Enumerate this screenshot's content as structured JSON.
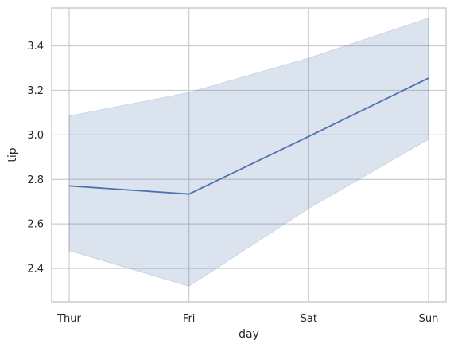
{
  "chart_data": {
    "type": "line",
    "title": "",
    "xlabel": "day",
    "ylabel": "tip",
    "categories": [
      "Thur",
      "Fri",
      "Sat",
      "Sun"
    ],
    "series": [
      {
        "values": [
          2.771,
          2.734,
          2.993,
          3.255
        ],
        "ci_lower": [
          2.48,
          2.32,
          2.67,
          2.98
        ],
        "ci_upper": [
          3.085,
          3.19,
          3.345,
          3.525
        ]
      }
    ],
    "ylim": [
      2.25,
      3.57
    ],
    "yticks": [
      2.4,
      2.6,
      2.8,
      3.0,
      3.2,
      3.4
    ],
    "ytick_labels": [
      "2.4",
      "2.6",
      "2.8",
      "3.0",
      "3.2",
      "3.4"
    ],
    "grid": true,
    "line_color": "#4c72b0",
    "band_color": "#4c72b0",
    "grid_color": "#cccccc"
  }
}
